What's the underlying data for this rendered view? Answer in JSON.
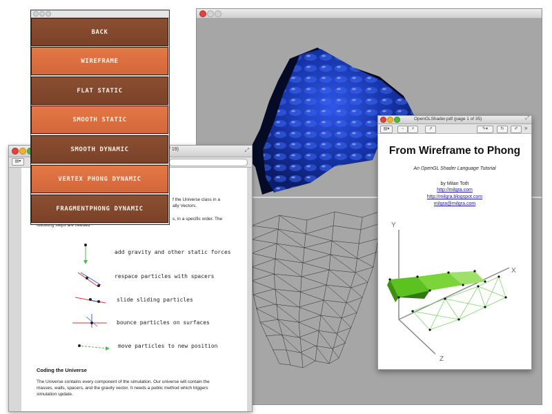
{
  "menu": {
    "buttons": [
      {
        "label": "BACK",
        "style": "dark"
      },
      {
        "label": "WIREFRAME",
        "style": "light"
      },
      {
        "label": "FLAT STATIC",
        "style": "dark"
      },
      {
        "label": "SMOOTH STATIC",
        "style": "light"
      },
      {
        "label": "SMOOTH DYNAMIC",
        "style": "dark"
      },
      {
        "label": "VERTEX PHONG DYNAMIC",
        "style": "light"
      },
      {
        "label": "FRAGMENTPHONG DYNAMIC",
        "style": "dark"
      }
    ]
  },
  "pdf_left": {
    "title_fragment": "/ 19)",
    "para1_line1": "f the Universe class in a",
    "para1_line2": "ally Vectors.",
    "para2_line1": "s, in a specific order. The",
    "para2_line2": "following steps are needed :",
    "steps": [
      "add gravity and other static forces",
      "respace particles with spacers",
      "slide sliding particles",
      "bounce particles on surfaces",
      "move particles to new position"
    ],
    "section_heading": "Coding the Universe",
    "body_line1": "The Universe contains every component of the simulation. Our universe will contain the",
    "body_line2": "masses, walls, spacers, and the gravity vector. It needs a public method which triggers",
    "body_line3": "simulation update."
  },
  "pdf_right": {
    "window_title": "OpenGLShader.pdf (page 1 of 35)",
    "doc_title": "From Wireframe to Phong",
    "doc_subtitle": "An OpenGL Shader Language Tutorial",
    "author": "by Milan Toth",
    "link1": "http://milgra.com",
    "link2": "http://milgra.blogspot.com",
    "email": "milgra@milgra.com",
    "axis_y": "Y",
    "axis_x": "X",
    "axis_z": "Z"
  },
  "colors": {
    "menu_dark": "#7b4229",
    "menu_light": "#d4673a",
    "surface_blue": "#1a3bb8",
    "render_bg": "#a6a6a6",
    "green_shape": "#5cc21f"
  },
  "icons": [
    "close-icon",
    "minimize-icon",
    "zoom-icon",
    "sidebar-toggle-icon",
    "zoom-out-icon",
    "zoom-in-icon",
    "share-icon",
    "annotate-icon",
    "rotate-icon",
    "edit-icon",
    "fullscreen-icon"
  ]
}
